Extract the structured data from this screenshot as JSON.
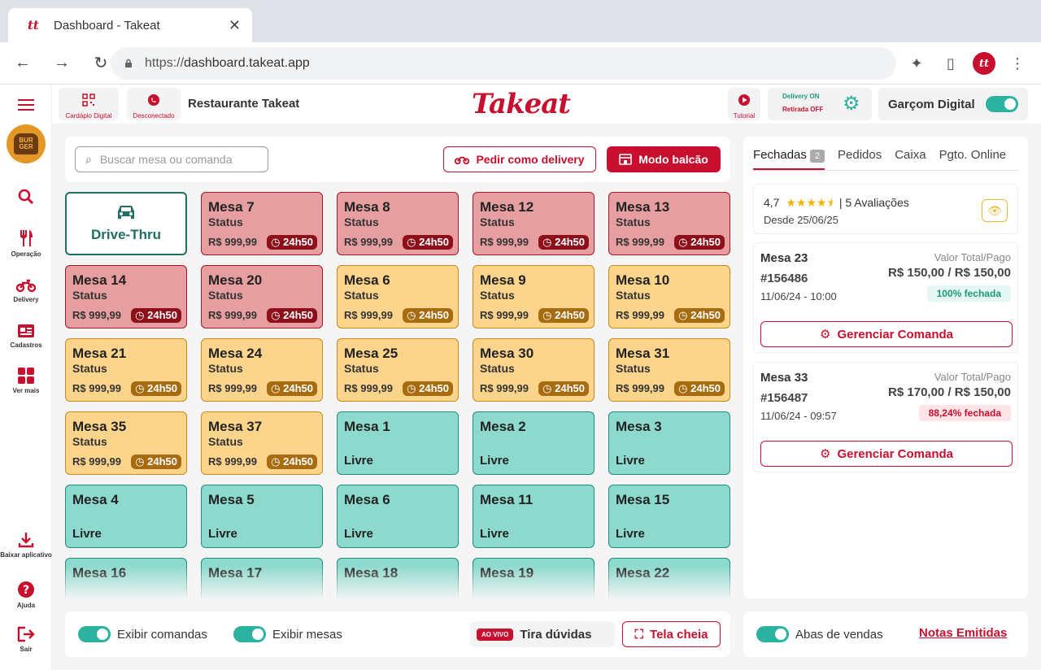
{
  "browser": {
    "tab_title": "Dashboard - Takeat",
    "favicon": "tt",
    "url_scheme": "https://",
    "url_host": "dashboard.takeat.app",
    "profile": "tt"
  },
  "leftnav": {
    "brand_text": "BUR GER",
    "items": [
      {
        "label": "",
        "icon": "search-icon"
      },
      {
        "label": "Operação",
        "icon": "utensils-icon"
      },
      {
        "label": "Delivery",
        "icon": "motorcycle-icon"
      },
      {
        "label": "Cadastros",
        "icon": "id-card-icon"
      },
      {
        "label": "Ver mais",
        "icon": "grid-icon"
      },
      {
        "label": "Baixar aplicativo",
        "icon": "download-icon"
      },
      {
        "label": "Ajuda",
        "icon": "help-icon"
      },
      {
        "label": "Sair",
        "icon": "logout-icon"
      }
    ]
  },
  "topbar": {
    "cardapio": "Cardápio Digital",
    "desconectado": "Desconectado",
    "restaurant": "Restaurante Takeat",
    "logo": "Takeat",
    "tutorial": "Tutorial",
    "delivery_on": "Delivery ON",
    "retirada_off": "Retirada OFF",
    "garcom": "Garçom Digital"
  },
  "actions": {
    "search_placeholder": "Buscar mesa ou comanda",
    "pedir_delivery": "Pedir como delivery",
    "modo_balcao": "Modo balcão"
  },
  "tables": {
    "drive_thru": "Drive-Thru",
    "status_label": "Status",
    "price": "R$ 999,99",
    "timer": "24h50",
    "livre": "Livre",
    "cards": [
      {
        "name": "Mesa 7",
        "state": "red"
      },
      {
        "name": "Mesa 8",
        "state": "red"
      },
      {
        "name": "Mesa 12",
        "state": "red"
      },
      {
        "name": "Mesa 13",
        "state": "red"
      },
      {
        "name": "Mesa 14",
        "state": "red"
      },
      {
        "name": "Mesa 20",
        "state": "red"
      },
      {
        "name": "Mesa 6",
        "state": "orange"
      },
      {
        "name": "Mesa 9",
        "state": "orange"
      },
      {
        "name": "Mesa 10",
        "state": "orange"
      },
      {
        "name": "Mesa 21",
        "state": "orange"
      },
      {
        "name": "Mesa 24",
        "state": "orange"
      },
      {
        "name": "Mesa 25",
        "state": "orange"
      },
      {
        "name": "Mesa 30",
        "state": "orange"
      },
      {
        "name": "Mesa 31",
        "state": "orange"
      },
      {
        "name": "Mesa 35",
        "state": "orange"
      },
      {
        "name": "Mesa 37",
        "state": "orange"
      },
      {
        "name": "Mesa 1",
        "state": "teal"
      },
      {
        "name": "Mesa 2",
        "state": "teal"
      },
      {
        "name": "Mesa 3",
        "state": "teal"
      },
      {
        "name": "Mesa 4",
        "state": "teal"
      },
      {
        "name": "Mesa 5",
        "state": "teal"
      },
      {
        "name": "Mesa 6",
        "state": "teal"
      },
      {
        "name": "Mesa 11",
        "state": "teal"
      },
      {
        "name": "Mesa 15",
        "state": "teal"
      },
      {
        "name": "Mesa 16",
        "state": "teal"
      },
      {
        "name": "Mesa 17",
        "state": "teal"
      },
      {
        "name": "Mesa 18",
        "state": "teal"
      },
      {
        "name": "Mesa 19",
        "state": "teal"
      },
      {
        "name": "Mesa 22",
        "state": "teal"
      }
    ]
  },
  "right": {
    "tabs": [
      "Fechadas",
      "Pedidos",
      "Caixa",
      "Pgto. Online"
    ],
    "fechadas_count": "2",
    "rating": "4,7",
    "stars": 4.5,
    "reviews": "| 5 Avaliações",
    "since": "Desde 25/06/25",
    "valor_label": "Valor Total/Pago",
    "manage": "Gerenciar Comanda",
    "orders": [
      {
        "mesa": "Mesa 23",
        "num": "#156486",
        "date": "11/06/24 - 10:00",
        "total": "R$ 150,00 / R$ 150,00",
        "pct": "100% fechada",
        "pct_color": "green"
      },
      {
        "mesa": "Mesa 33",
        "num": "#156487",
        "date": "11/06/24 - 09:57",
        "total": "R$ 170,00 / R$ 150,00",
        "pct": "88,24% fechada",
        "pct_color": "pink"
      }
    ]
  },
  "bottom": {
    "exibir_comandas": "Exibir comandas",
    "exibir_mesas": "Exibir mesas",
    "ao_vivo": "AO VIVO",
    "tira_duvidas": "Tira dúvidas",
    "tela_cheia": "Tela cheia",
    "abas_vendas": "Abas de vendas",
    "notas": "Notas Emitidas"
  },
  "colors": {
    "brand": "#c8102e",
    "accent": "#2bb3a0",
    "occupied": "#e69ea0",
    "waiting": "#fdd48c",
    "free": "#8ed9cd"
  }
}
